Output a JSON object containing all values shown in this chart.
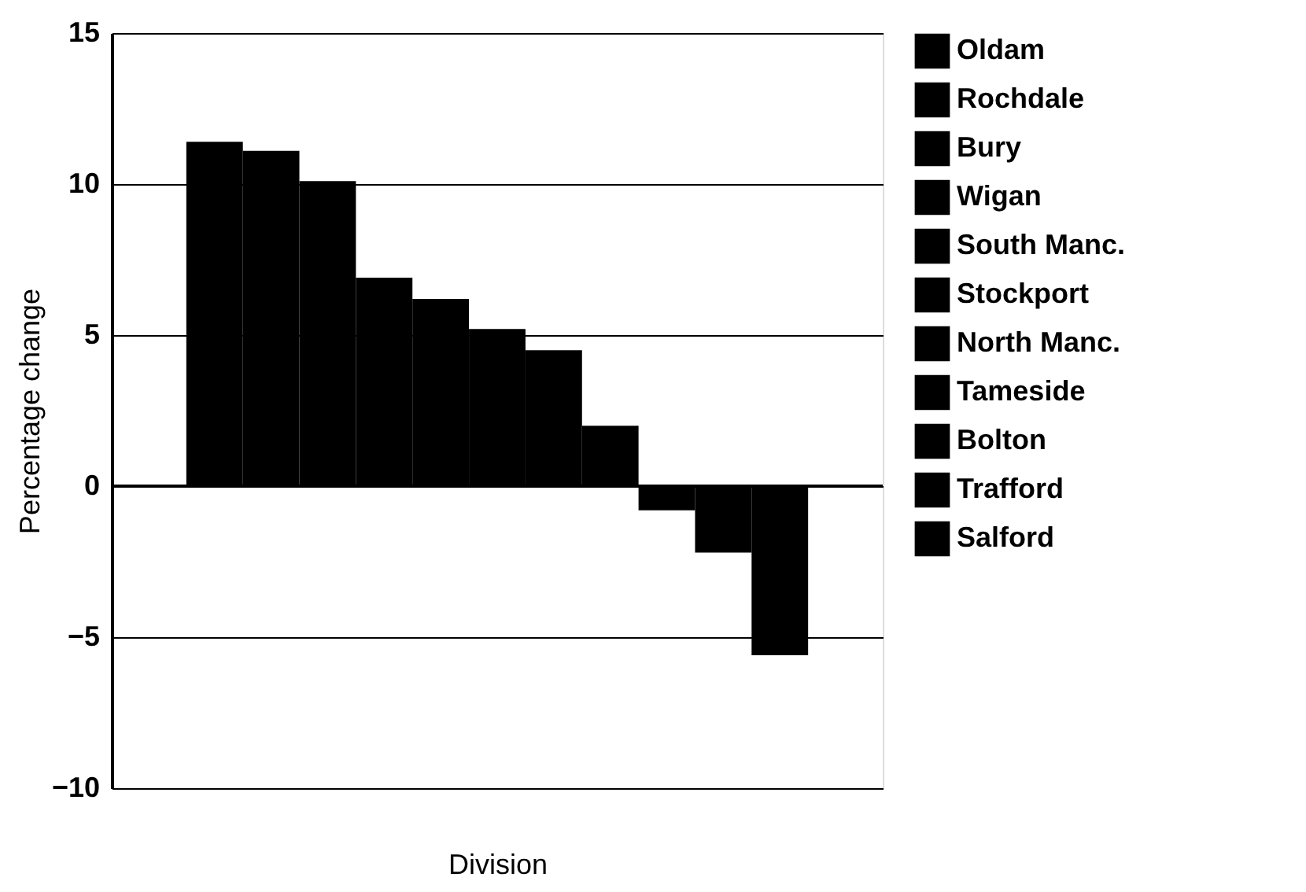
{
  "chart_data": {
    "type": "bar",
    "xlabel": "Division",
    "ylabel": "Percentage change",
    "categories": [
      null
    ],
    "series": [
      {
        "name": "Oldam",
        "color": "#000000",
        "values": [
          11.4
        ]
      },
      {
        "name": "Rochdale",
        "color": "#000000",
        "values": [
          11.1
        ]
      },
      {
        "name": "Bury",
        "color": "#000000",
        "values": [
          10.1
        ]
      },
      {
        "name": "Wigan",
        "color": "#000000",
        "values": [
          6.9
        ]
      },
      {
        "name": "South Manc.",
        "color": "#000000",
        "values": [
          6.2
        ]
      },
      {
        "name": "Stockport",
        "color": "#000000",
        "values": [
          5.2
        ]
      },
      {
        "name": "North Manc.",
        "color": "#000000",
        "values": [
          4.5
        ]
      },
      {
        "name": "Tameside",
        "color": "#000000",
        "values": [
          2.0
        ]
      },
      {
        "name": "Bolton",
        "color": "#000000",
        "values": [
          -0.8
        ]
      },
      {
        "name": "Trafford",
        "color": "#000000",
        "values": [
          -2.2
        ]
      },
      {
        "name": "Salford",
        "color": "#000000",
        "values": [
          -5.6
        ]
      }
    ],
    "ylim": [
      -10,
      15
    ],
    "yticks": [
      -10,
      -5,
      0,
      5,
      10,
      15
    ],
    "grid": "y",
    "legend": "right",
    "tick_labels": "y"
  }
}
